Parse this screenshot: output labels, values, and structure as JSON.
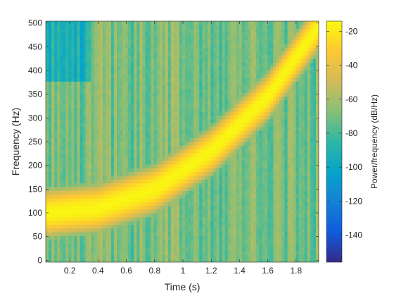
{
  "chart_data": {
    "type": "heatmap",
    "title": "",
    "xlabel": "Time (s)",
    "ylabel": "Frequency (Hz)",
    "colorbar_label": "Power/frequency (dB/Hz)",
    "xlim": [
      0.03,
      1.96
    ],
    "ylim": [
      -4,
      504
    ],
    "clim": [
      -156,
      -14
    ],
    "x_ticks": [
      0.2,
      0.4,
      0.6,
      0.8,
      1,
      1.2,
      1.4,
      1.6,
      1.8
    ],
    "x_tick_labels": [
      "0.2",
      "0.4",
      "0.6",
      "0.8",
      "1",
      "1.2",
      "1.4",
      "1.6",
      "1.8"
    ],
    "y_ticks": [
      0,
      50,
      100,
      150,
      200,
      250,
      300,
      350,
      400,
      450,
      500
    ],
    "y_tick_labels": [
      "0",
      "50",
      "100",
      "150",
      "200",
      "250",
      "300",
      "350",
      "400",
      "450",
      "500"
    ],
    "colorbar_ticks": [
      -140,
      -120,
      -100,
      -80,
      -60,
      -40,
      -20
    ],
    "colorbar_tick_labels": [
      "-140",
      "-120",
      "-100",
      "-80",
      "-60",
      "-40",
      "-20"
    ],
    "colormap": "parula",
    "colormap_stops": [
      "#352a87",
      "#0f5cdd",
      "#1481d6",
      "#06a4ca",
      "#2eb7a4",
      "#87bf77",
      "#d1bb59",
      "#fec832",
      "#f9fb0e"
    ],
    "grid": false,
    "ridge": {
      "description_points": [
        {
          "t": 0.05,
          "f": 100
        },
        {
          "t": 0.4,
          "f": 110
        },
        {
          "t": 0.8,
          "f": 150
        },
        {
          "t": 1.2,
          "f": 230
        },
        {
          "t": 1.6,
          "f": 345
        },
        {
          "t": 1.95,
          "f": 490
        }
      ],
      "peak_db": -16,
      "background_db": -70
    }
  }
}
